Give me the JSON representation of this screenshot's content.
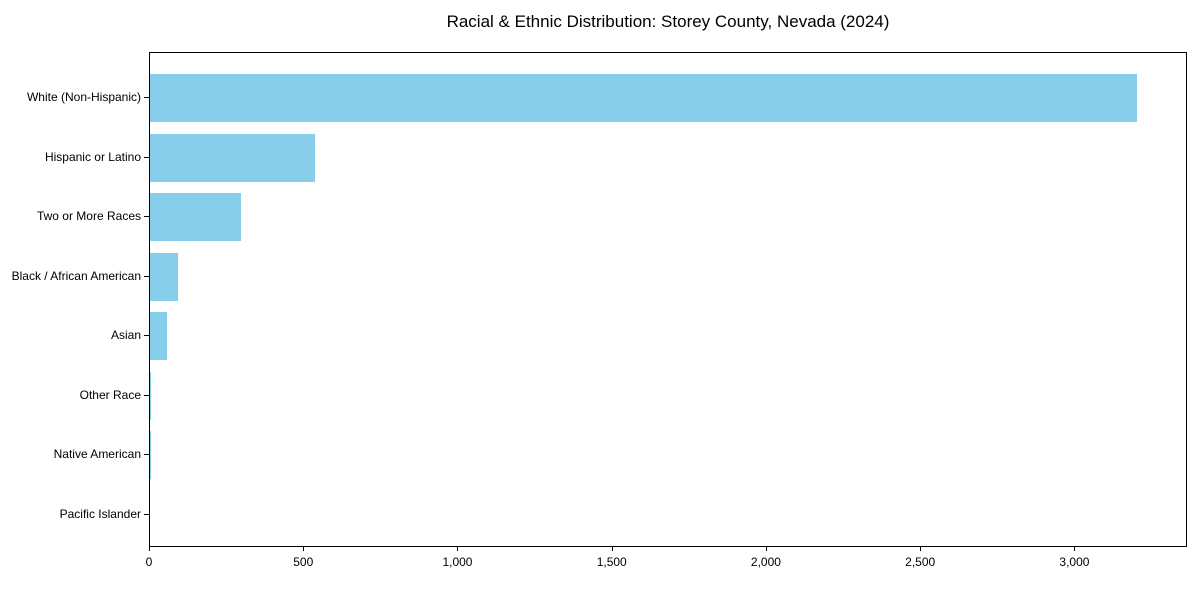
{
  "chart_data": {
    "type": "bar",
    "orientation": "horizontal",
    "title": "Racial & Ethnic Distribution: Storey County, Nevada (2024)",
    "categories": [
      "White (Non-Hispanic)",
      "Hispanic or Latino",
      "Two or More Races",
      "Black / African American",
      "Asian",
      "Other Race",
      "Native American",
      "Pacific Islander"
    ],
    "values": [
      3200,
      535,
      295,
      90,
      55,
      4,
      2,
      0
    ],
    "xlabel": "",
    "ylabel": "",
    "xlim": [
      0,
      3365
    ],
    "xticks": [
      0,
      500,
      1000,
      1500,
      2000,
      2500,
      3000
    ],
    "xtick_labels": [
      "0",
      "500",
      "1,000",
      "1,500",
      "2,000",
      "2,500",
      "3,000"
    ],
    "bar_color": "#87CEEB",
    "axis_color": "#000000",
    "text_color": "#000000",
    "background_color": "#FFFFFF",
    "grid": false,
    "legend": null
  }
}
